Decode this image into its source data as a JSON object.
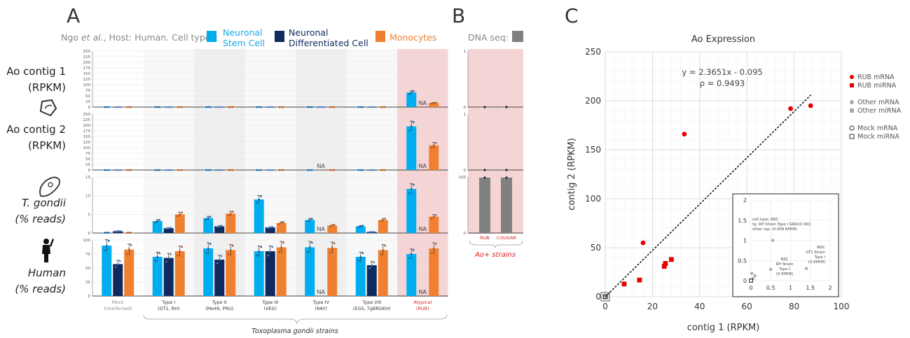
{
  "panel_letters": [
    "A",
    "B",
    "C"
  ],
  "legend_a": {
    "prefix": "Ngo ",
    "etal": "et al.",
    "suffix": ", Host: Human. Cell types:",
    "items": [
      {
        "label1": "Neuronal",
        "label2": "Stem Cell",
        "color": "#00aeef",
        "text_color": "#1aa9e6"
      },
      {
        "label1": "Neuronal",
        "label2": "Differentiated Cell",
        "color": "#0e2a5e",
        "text_color": "#0e2a5e"
      },
      {
        "label1": "Monocytes",
        "label2": "",
        "color": "#f08030",
        "text_color": "#f08030"
      }
    ]
  },
  "dna_seq": {
    "label": "DNA seq:",
    "color": "#808080"
  },
  "row_labels": [
    {
      "l1": "Ao contig 1",
      "l2": "(RPKM)",
      "italic": false
    },
    {
      "l1": "Ao contig 2",
      "l2": "(RPKM)",
      "italic": false
    },
    {
      "l1": "T. gondii",
      "l2": "(% reads)",
      "italic": true
    },
    {
      "l1": "Human",
      "l2": "(% reads)",
      "italic": true
    }
  ],
  "na_label": "NA",
  "groups": [
    {
      "l1": "Mock",
      "l2": "(Uninfected)",
      "color": "#888888"
    },
    {
      "l1": "Type I",
      "l2": "(GT1, RH)",
      "color": "#333333"
    },
    {
      "l1": "Type II",
      "l2": "(Me49, PRU)",
      "color": "#333333"
    },
    {
      "l1": "Type III",
      "l2": "(VEG)",
      "color": "#333333"
    },
    {
      "l1": "Type IV",
      "l2": "(RAY)",
      "color": "#333333"
    },
    {
      "l1": "Type I/III",
      "l2": "(EGS, TgBRDKH)",
      "color": "#333333"
    },
    {
      "l1": "Atypical",
      "l2": "(RUB)",
      "color": "#e02020"
    }
  ],
  "strain_caption": "Toxoplasma gondii strains",
  "b_groups": [
    "RUB",
    "COUGAR"
  ],
  "b_caption": "Ao+ strains",
  "chart_data": [
    {
      "type": "bar",
      "panel": "A",
      "categories": [
        "Mock (Uninfected)",
        "Type I (GT1, RH)",
        "Type II (Me49, PRU)",
        "Type III (VEG)",
        "Type IV (RAY)",
        "Type I/III (EGS, TgBRDKH)",
        "Atypical (RUB)"
      ],
      "rows": [
        {
          "ylim": [
            0,
            250
          ],
          "ticks": [
            0,
            25,
            50,
            75,
            100,
            125,
            150,
            175,
            200,
            225,
            250
          ],
          "series": [
            {
              "name": "Neuronal Stem Cell",
              "values": [
                0,
                0,
                0,
                0,
                0,
                0,
                65
              ]
            },
            {
              "name": "Neuronal Differentiated Cell",
              "values": [
                0,
                0,
                0,
                0,
                0,
                0,
                null
              ]
            },
            {
              "name": "Monocytes",
              "values": [
                0,
                0,
                0,
                0,
                0,
                0,
                18
              ]
            }
          ]
        },
        {
          "ylim": [
            0,
            250
          ],
          "ticks": [
            0,
            25,
            50,
            75,
            100,
            125,
            150,
            175,
            200,
            225,
            250
          ],
          "series": [
            {
              "name": "Neuronal Stem Cell",
              "values": [
                0,
                0,
                0,
                0,
                0,
                0,
                195
              ]
            },
            {
              "name": "Neuronal Differentiated Cell",
              "values": [
                0,
                0,
                0,
                0,
                null,
                0,
                null
              ]
            },
            {
              "name": "Monocytes",
              "values": [
                0,
                0,
                0,
                0,
                0,
                0,
                110
              ]
            }
          ]
        },
        {
          "ylim": [
            0,
            15
          ],
          "ticks": [
            0,
            5,
            10,
            15
          ],
          "series": [
            {
              "name": "Neuronal Stem Cell",
              "values": [
                0.1,
                3.2,
                4.0,
                9.0,
                3.5,
                1.8,
                11.8
              ]
            },
            {
              "name": "Neuronal Differentiated Cell",
              "values": [
                0.5,
                1.3,
                1.8,
                1.5,
                null,
                0.3,
                null
              ]
            },
            {
              "name": "Monocytes",
              "values": [
                0.1,
                5.0,
                5.2,
                2.7,
                2.0,
                3.5,
                4.4
              ]
            }
          ]
        },
        {
          "ylim": [
            0,
            100
          ],
          "ticks": [
            0,
            25,
            50,
            75,
            100
          ],
          "series": [
            {
              "name": "Neuronal Stem Cell",
              "values": [
                90,
                70,
                85,
                80,
                87,
                70,
                75
              ]
            },
            {
              "name": "Neuronal Differentiated Cell",
              "values": [
                57,
                68,
                65,
                80,
                null,
                55,
                null
              ]
            },
            {
              "name": "Monocytes",
              "values": [
                83,
                80,
                82,
                87,
                86,
                82,
                85
              ]
            }
          ]
        }
      ]
    },
    {
      "type": "bar",
      "panel": "B",
      "categories": [
        "RUB",
        "COUGAR"
      ],
      "rows": [
        {
          "ylim": [
            0,
            1
          ],
          "ticks": [
            0,
            1
          ],
          "series": [
            {
              "name": "DNA seq",
              "values": [
                0,
                0
              ]
            }
          ]
        },
        {
          "ylim": [
            0,
            1
          ],
          "ticks": [
            0,
            1
          ],
          "series": [
            {
              "name": "DNA seq",
              "values": [
                0,
                0
              ]
            }
          ]
        },
        {
          "ylim": [
            0,
            100
          ],
          "ticks": [
            0,
            100
          ],
          "series": [
            {
              "name": "DNA seq",
              "values": [
                99,
                99
              ]
            }
          ]
        }
      ]
    },
    {
      "type": "scatter",
      "panel": "C",
      "title": "Ao Expression",
      "xlabel": "contig 1 (RPKM)",
      "ylabel": "contig 2 (RPKM)",
      "xlim": [
        0,
        100
      ],
      "ylim": [
        0,
        250
      ],
      "xticks": [
        0,
        20,
        40,
        60,
        80,
        100
      ],
      "yticks": [
        0,
        50,
        100,
        150,
        200,
        250
      ],
      "equation": "y = 2.3651x  -  0.095",
      "rho": "ρ = 0.9493",
      "fit": {
        "slope": 2.3651,
        "intercept": -0.095,
        "x_range": [
          0,
          87
        ]
      },
      "series": [
        {
          "name": "RUB mRNA",
          "marker": "circle",
          "color": "#e60000",
          "points": [
            [
              16,
              55
            ],
            [
              33.5,
              166
            ],
            [
              78.5,
              192
            ],
            [
              87,
              195
            ]
          ]
        },
        {
          "name": "RUB miRNA",
          "marker": "square",
          "color": "#e60000",
          "points": [
            [
              8,
              13
            ],
            [
              14.5,
              17
            ],
            [
              25,
              31
            ],
            [
              25.5,
              34
            ],
            [
              28,
              38
            ]
          ]
        },
        {
          "name": "Other mRNA",
          "marker": "circle",
          "color": "#aaaaaa",
          "points": []
        },
        {
          "name": "Other miRNA",
          "marker": "square",
          "color": "#aaaaaa",
          "points": []
        },
        {
          "name": "Mock mRNA",
          "marker": "circle-open",
          "color": "#333333",
          "points": [
            [
              0,
              0
            ]
          ]
        },
        {
          "name": "Mock miRNA",
          "marker": "square-open",
          "color": "#333333",
          "points": [
            [
              0,
              0
            ]
          ]
        }
      ],
      "inset": {
        "xlim": [
          0,
          2
        ],
        "ylim": [
          0,
          2
        ],
        "ticks": [
          0,
          0.5,
          1,
          1.5,
          2
        ],
        "points": [
          [
            0.55,
            1.0
          ],
          [
            0.5,
            0.28
          ],
          [
            1.4,
            0.3
          ],
          [
            0.05,
            0.05
          ],
          [
            0.1,
            0.12
          ],
          [
            0.02,
            0.18
          ]
        ],
        "notes": [
          {
            "lines": [
              "cell type: NSC",
              "tg: RH Strain Type I GRA10 (KO)",
              "other rep: (0.009 RPKM)"
            ]
          },
          {
            "lines": [
              "NSC",
              "RH Strain",
              "Type I",
              "(0 RPKM)"
            ]
          },
          {
            "lines": [
              "NDC",
              "GT1 Strain",
              "Type I",
              "(0 RPKM)"
            ]
          }
        ]
      }
    }
  ]
}
